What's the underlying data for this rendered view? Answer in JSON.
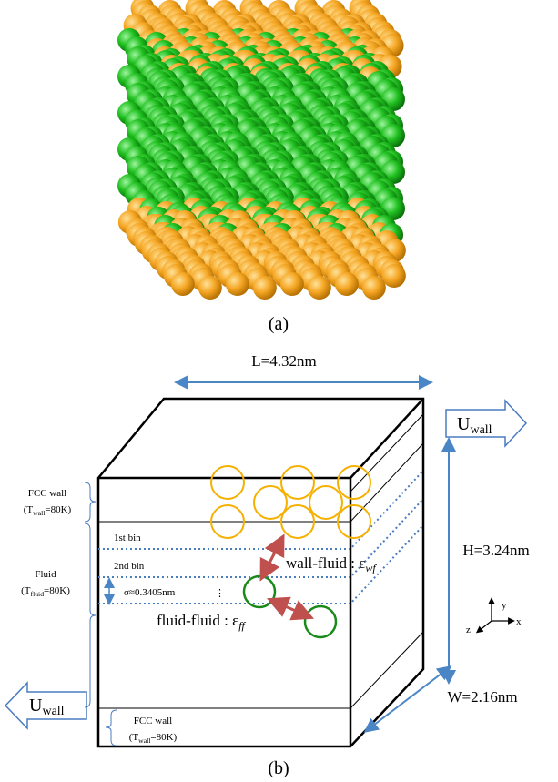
{
  "panel_a": {
    "label": "(a)"
  },
  "panel_b": {
    "label": "(b)",
    "length": "L=4.32nm",
    "height": "H=3.24nm",
    "width": "W=2.16nm",
    "u_wall_top": {
      "main": "U",
      "sub": "wall"
    },
    "u_wall_bottom": {
      "main": "U",
      "sub": "wall"
    },
    "fcc_wall_top": {
      "line1": "FCC wall",
      "pre": "(T",
      "sub": "wall",
      "post": "=80K)"
    },
    "fluid": {
      "line1": "Fluid",
      "pre": "(T",
      "sub": "fluid",
      "post": "=80K)"
    },
    "fcc_wall_bottom": {
      "line1": "FCC wall",
      "pre": "(T",
      "sub": "wall",
      "post": "=80K)"
    },
    "bin1": "1st bin",
    "bin2": "2nd bin",
    "sigma": "σ≈0.3405nm",
    "dots": "⋮",
    "wall_fluid": {
      "main": "wall-fluid : ε",
      "sub": "wf"
    },
    "fluid_fluid": {
      "main": "fluid-fluid : ε",
      "sub": "ff"
    },
    "axes": {
      "x": "x",
      "y": "y",
      "z": "z"
    }
  }
}
